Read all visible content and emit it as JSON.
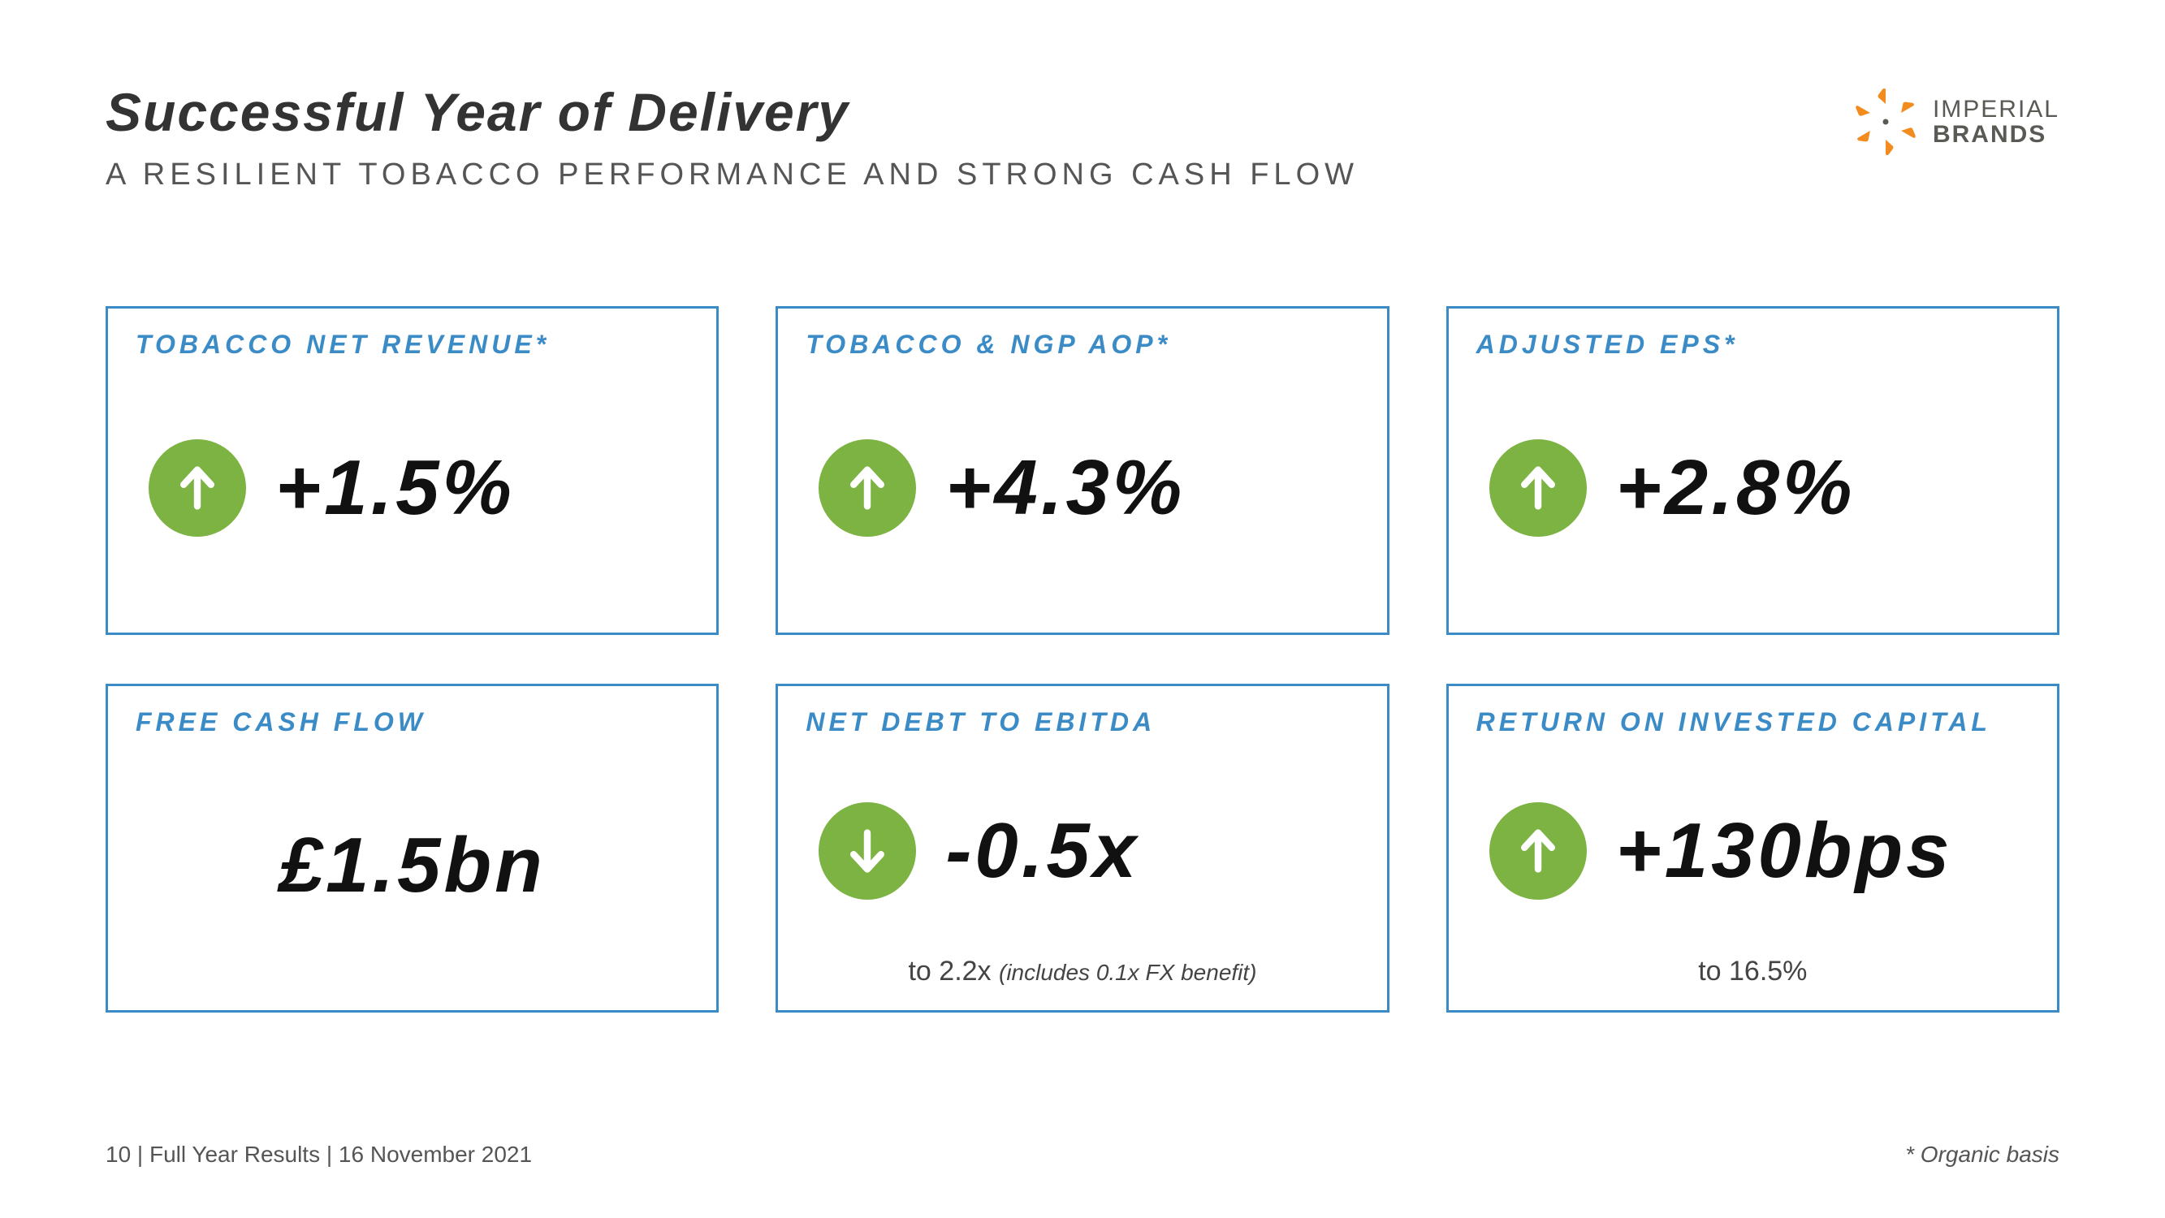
{
  "colors": {
    "card_border": "#3b8bc7",
    "card_label": "#3b8bc7",
    "arrow_bg": "#7cb342",
    "arrow_fg": "#ffffff",
    "logo_orange": "#f28c1f",
    "logo_text": "#5a5a55",
    "title": "#333333",
    "subtitle": "#555555",
    "metric": "#111111"
  },
  "header": {
    "title": "Successful Year of Delivery",
    "subtitle": "A RESILIENT TOBACCO PERFORMANCE AND STRONG CASH FLOW"
  },
  "logo": {
    "line1": "IMPERIAL",
    "line2": "BRANDS"
  },
  "cards": [
    {
      "label": "TOBACCO NET REVENUE*",
      "arrow": "up",
      "value": "+1.5%",
      "note_plain": "",
      "note_ital": ""
    },
    {
      "label": "TOBACCO & NGP AOP*",
      "arrow": "up",
      "value": "+4.3%",
      "note_plain": "",
      "note_ital": ""
    },
    {
      "label": "ADJUSTED EPS*",
      "arrow": "up",
      "value": "+2.8%",
      "note_plain": "",
      "note_ital": ""
    },
    {
      "label": "FREE CASH FLOW",
      "arrow": "none",
      "value": "£1.5bn",
      "note_plain": "",
      "note_ital": ""
    },
    {
      "label": "NET DEBT TO EBITDA",
      "arrow": "down",
      "value": "-0.5x",
      "note_plain": "to 2.2x ",
      "note_ital": "(includes 0.1x FX benefit)"
    },
    {
      "label": "RETURN ON INVESTED CAPITAL",
      "arrow": "up",
      "value": "+130bps",
      "note_plain": "to 16.5%",
      "note_ital": ""
    }
  ],
  "footer": {
    "left": "10 |   Full Year Results | 16 November 2021",
    "right": "* Organic basis"
  }
}
